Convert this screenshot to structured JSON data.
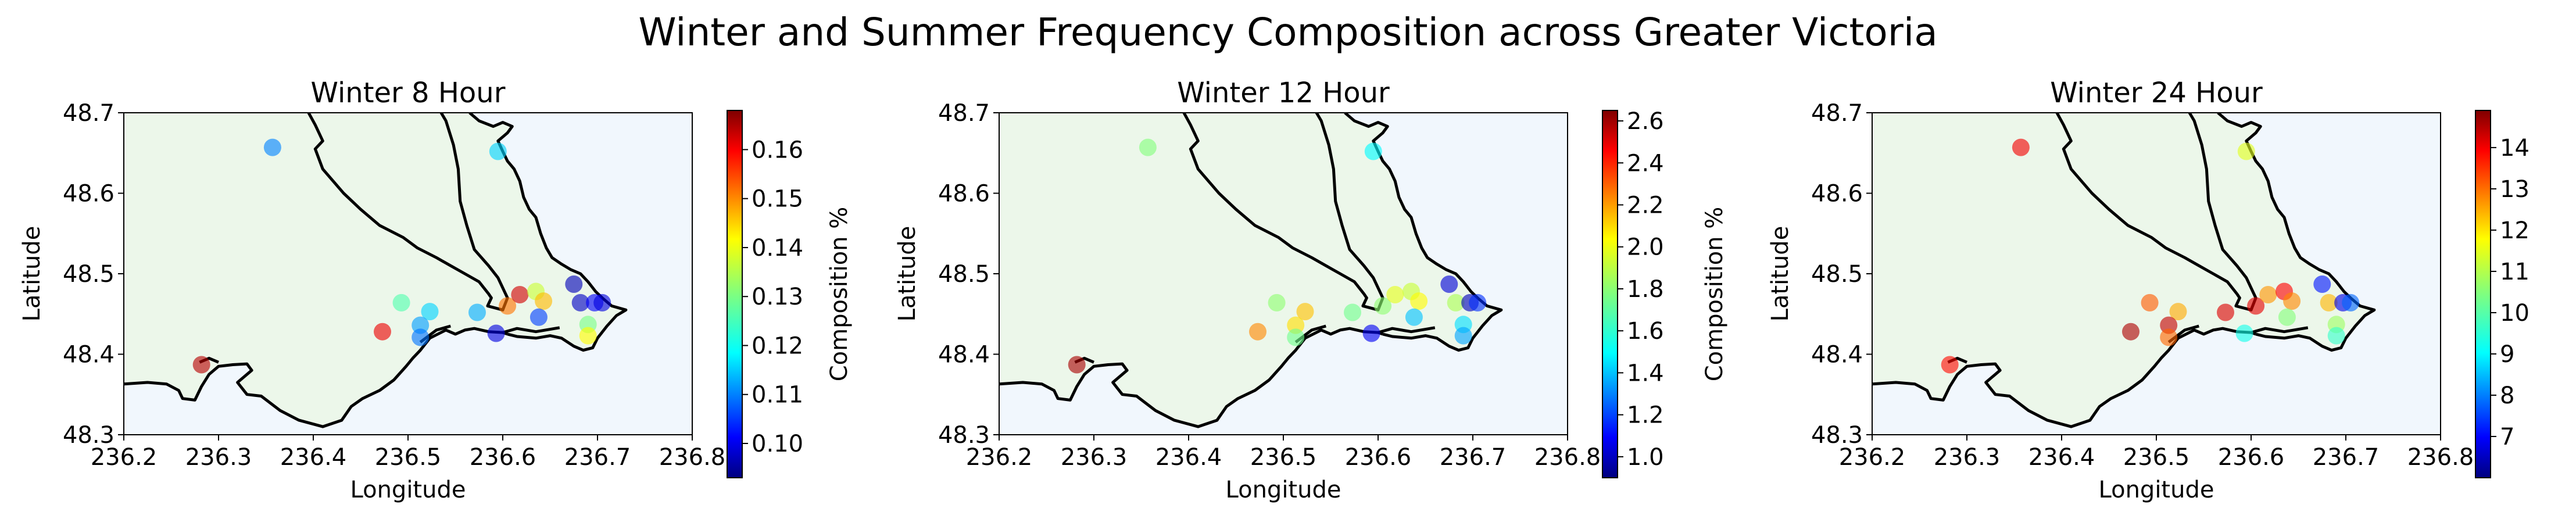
{
  "figure": {
    "suptitle": "Winter and Summer Frequency Composition across Greater Victoria"
  },
  "colors": {
    "land": "#ecf7ea",
    "water": "#f1f7fd",
    "coastline": "#000000",
    "colormap": "jet"
  },
  "chart_data": [
    {
      "type": "scatter",
      "title": "Winter 8 Hour",
      "xlabel": "Longitude",
      "ylabel": "Latitude",
      "xlim": [
        236.2,
        236.8
      ],
      "ylim": [
        48.3,
        48.7
      ],
      "xticks": [
        "236.2",
        "236.3",
        "236.4",
        "236.5",
        "236.6",
        "236.7",
        "236.8"
      ],
      "yticks": [
        "48.3",
        "48.4",
        "48.5",
        "48.6",
        "48.7"
      ],
      "colorbar": {
        "label": "Composition %",
        "range": [
          0.093,
          0.168
        ],
        "ticks": [
          "0.10",
          "0.11",
          "0.12",
          "0.13",
          "0.14",
          "0.15",
          "0.16"
        ]
      },
      "points": [
        {
          "x": 236.357,
          "y": 48.657,
          "v": 0.112
        },
        {
          "x": 236.595,
          "y": 48.652,
          "v": 0.118
        },
        {
          "x": 236.282,
          "y": 48.387,
          "v": 0.164
        },
        {
          "x": 236.473,
          "y": 48.428,
          "v": 0.16
        },
        {
          "x": 236.493,
          "y": 48.464,
          "v": 0.127
        },
        {
          "x": 236.523,
          "y": 48.453,
          "v": 0.118
        },
        {
          "x": 236.513,
          "y": 48.436,
          "v": 0.114
        },
        {
          "x": 236.513,
          "y": 48.421,
          "v": 0.111
        },
        {
          "x": 236.573,
          "y": 48.452,
          "v": 0.115
        },
        {
          "x": 236.593,
          "y": 48.426,
          "v": 0.1
        },
        {
          "x": 236.605,
          "y": 48.46,
          "v": 0.15
        },
        {
          "x": 236.618,
          "y": 48.474,
          "v": 0.162
        },
        {
          "x": 236.635,
          "y": 48.478,
          "v": 0.136
        },
        {
          "x": 236.643,
          "y": 48.466,
          "v": 0.145
        },
        {
          "x": 236.638,
          "y": 48.446,
          "v": 0.107
        },
        {
          "x": 236.675,
          "y": 48.487,
          "v": 0.097
        },
        {
          "x": 236.682,
          "y": 48.464,
          "v": 0.098
        },
        {
          "x": 236.697,
          "y": 48.464,
          "v": 0.102
        },
        {
          "x": 236.69,
          "y": 48.437,
          "v": 0.13
        },
        {
          "x": 236.69,
          "y": 48.423,
          "v": 0.14
        },
        {
          "x": 236.705,
          "y": 48.464,
          "v": 0.1
        }
      ]
    },
    {
      "type": "scatter",
      "title": "Winter 12 Hour",
      "xlabel": "Longitude",
      "ylabel": "Latitude",
      "xlim": [
        236.2,
        236.8
      ],
      "ylim": [
        48.3,
        48.7
      ],
      "xticks": [
        "236.2",
        "236.3",
        "236.4",
        "236.5",
        "236.6",
        "236.7",
        "236.8"
      ],
      "yticks": [
        "48.3",
        "48.4",
        "48.5",
        "48.6",
        "48.7"
      ],
      "colorbar": {
        "label": "Composition %",
        "range": [
          0.9,
          2.65
        ],
        "ticks": [
          "1.0",
          "1.2",
          "1.4",
          "1.6",
          "1.8",
          "2.0",
          "2.2",
          "2.4",
          "2.6"
        ]
      },
      "points": [
        {
          "x": 236.357,
          "y": 48.657,
          "v": 1.78
        },
        {
          "x": 236.595,
          "y": 48.652,
          "v": 1.55
        },
        {
          "x": 236.282,
          "y": 48.387,
          "v": 2.58
        },
        {
          "x": 236.473,
          "y": 48.428,
          "v": 2.2
        },
        {
          "x": 236.493,
          "y": 48.464,
          "v": 1.8
        },
        {
          "x": 236.523,
          "y": 48.453,
          "v": 2.1
        },
        {
          "x": 236.513,
          "y": 48.436,
          "v": 2.05
        },
        {
          "x": 236.513,
          "y": 48.421,
          "v": 1.75
        },
        {
          "x": 236.573,
          "y": 48.452,
          "v": 1.75
        },
        {
          "x": 236.593,
          "y": 48.426,
          "v": 1.1
        },
        {
          "x": 236.605,
          "y": 48.46,
          "v": 1.8
        },
        {
          "x": 236.618,
          "y": 48.474,
          "v": 1.95
        },
        {
          "x": 236.635,
          "y": 48.478,
          "v": 1.9
        },
        {
          "x": 236.643,
          "y": 48.466,
          "v": 2.0
        },
        {
          "x": 236.638,
          "y": 48.446,
          "v": 1.45
        },
        {
          "x": 236.675,
          "y": 48.487,
          "v": 1.05
        },
        {
          "x": 236.682,
          "y": 48.464,
          "v": 1.85
        },
        {
          "x": 236.697,
          "y": 48.464,
          "v": 1.0
        },
        {
          "x": 236.69,
          "y": 48.437,
          "v": 1.5
        },
        {
          "x": 236.69,
          "y": 48.423,
          "v": 1.4
        },
        {
          "x": 236.705,
          "y": 48.464,
          "v": 1.2
        }
      ]
    },
    {
      "type": "scatter",
      "title": "Winter 24 Hour",
      "xlabel": "Longitude",
      "ylabel": "Latitude",
      "xlim": [
        236.2,
        236.8
      ],
      "ylim": [
        48.3,
        48.7
      ],
      "xticks": [
        "236.2",
        "236.3",
        "236.4",
        "236.5",
        "236.6",
        "236.7",
        "236.8"
      ],
      "yticks": [
        "48.3",
        "48.4",
        "48.5",
        "48.6",
        "48.7"
      ],
      "colorbar": {
        "label": "Composition %",
        "range": [
          6.0,
          14.9
        ],
        "ticks": [
          "7",
          "8",
          "9",
          "10",
          "11",
          "12",
          "13",
          "14"
        ]
      },
      "points": [
        {
          "x": 236.357,
          "y": 48.657,
          "v": 13.9
        },
        {
          "x": 236.595,
          "y": 48.652,
          "v": 11.3
        },
        {
          "x": 236.282,
          "y": 48.387,
          "v": 13.7
        },
        {
          "x": 236.473,
          "y": 48.428,
          "v": 14.5
        },
        {
          "x": 236.493,
          "y": 48.464,
          "v": 13.0
        },
        {
          "x": 236.523,
          "y": 48.453,
          "v": 12.3
        },
        {
          "x": 236.513,
          "y": 48.436,
          "v": 14.3
        },
        {
          "x": 236.513,
          "y": 48.421,
          "v": 12.9
        },
        {
          "x": 236.573,
          "y": 48.452,
          "v": 14.1
        },
        {
          "x": 236.593,
          "y": 48.426,
          "v": 9.5
        },
        {
          "x": 236.605,
          "y": 48.46,
          "v": 14.0
        },
        {
          "x": 236.618,
          "y": 48.474,
          "v": 12.5
        },
        {
          "x": 236.635,
          "y": 48.478,
          "v": 13.8
        },
        {
          "x": 236.643,
          "y": 48.466,
          "v": 12.6
        },
        {
          "x": 236.638,
          "y": 48.446,
          "v": 10.5
        },
        {
          "x": 236.675,
          "y": 48.487,
          "v": 7.3
        },
        {
          "x": 236.682,
          "y": 48.464,
          "v": 12.2
        },
        {
          "x": 236.697,
          "y": 48.464,
          "v": 6.9
        },
        {
          "x": 236.69,
          "y": 48.437,
          "v": 10.7
        },
        {
          "x": 236.69,
          "y": 48.423,
          "v": 9.8
        },
        {
          "x": 236.705,
          "y": 48.464,
          "v": 8.0
        }
      ]
    }
  ]
}
